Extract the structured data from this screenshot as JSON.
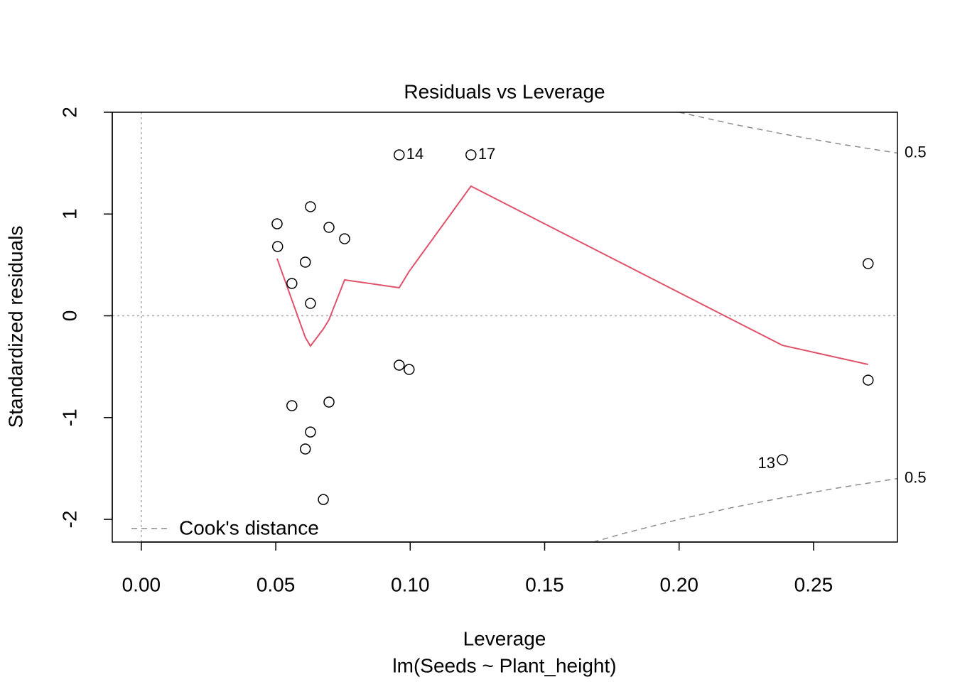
{
  "chart_data": {
    "type": "scatter",
    "title": "Residuals vs Leverage",
    "x_label": "Leverage",
    "subtitle": "lm(Seeds ~ Plant_height)",
    "y_label": "Standardized residuals",
    "xlim": [
      -0.0108,
      0.2812
    ],
    "ylim": [
      -2.223,
      2
    ],
    "xticks": [
      {
        "value": 0,
        "label": "0.00"
      },
      {
        "value": 0.05,
        "label": "0.05"
      },
      {
        "value": 0.1,
        "label": "0.10"
      },
      {
        "value": 0.15,
        "label": "0.15"
      },
      {
        "value": 0.2,
        "label": "0.20"
      },
      {
        "value": 0.25,
        "label": "0.25"
      }
    ],
    "yticks": [
      -2,
      -1,
      0,
      1,
      2
    ],
    "reference_lines": {
      "x": 0,
      "y": 0
    },
    "points": {
      "x": [
        0.0505,
        0.0507,
        0.0629,
        0.0698,
        0.0756,
        0.061,
        0.056,
        0.0629,
        0.0959,
        0.1226,
        0.2703,
        0.2703,
        0.0959,
        0.0996,
        0.056,
        0.0698,
        0.0629,
        0.061,
        0.0677,
        0.2384
      ],
      "y": [
        0.904,
        0.681,
        1.072,
        0.869,
        0.757,
        0.527,
        0.318,
        0.122,
        1.581,
        1.581,
        0.513,
        -0.632,
        -0.485,
        -0.527,
        -0.883,
        -0.848,
        -1.142,
        -1.309,
        -1.805,
        -1.414
      ],
      "labels": [
        null,
        null,
        null,
        null,
        null,
        null,
        null,
        null,
        "14",
        "17",
        null,
        null,
        null,
        null,
        null,
        null,
        null,
        null,
        null,
        "13"
      ]
    },
    "smooth": {
      "color": "#df536b",
      "x": [
        0.0505,
        0.061,
        0.0629,
        0.0677,
        0.0698,
        0.0756,
        0.0959,
        0.0996,
        0.1226,
        0.2384,
        0.2703
      ],
      "y": [
        0.562,
        -0.213,
        -0.297,
        -0.129,
        -0.038,
        0.353,
        0.276,
        0.436,
        1.274,
        -0.29,
        -0.478
      ]
    },
    "cooks": {
      "name": "Cook's distance",
      "color": "#8c8c8c",
      "level_label": "0.5",
      "curves": [
        {
          "x": [
            0.2,
            0.22,
            0.24,
            0.26,
            0.2812
          ],
          "y": [
            2,
            1.883,
            1.78,
            1.687,
            1.599
          ]
        },
        {
          "x": [
            0.168,
            0.18,
            0.2,
            0.22,
            0.24,
            0.26,
            0.2812
          ],
          "y": [
            -2.223,
            -2.134,
            -2,
            -1.883,
            -1.78,
            -1.687,
            -1.599
          ]
        }
      ]
    }
  }
}
